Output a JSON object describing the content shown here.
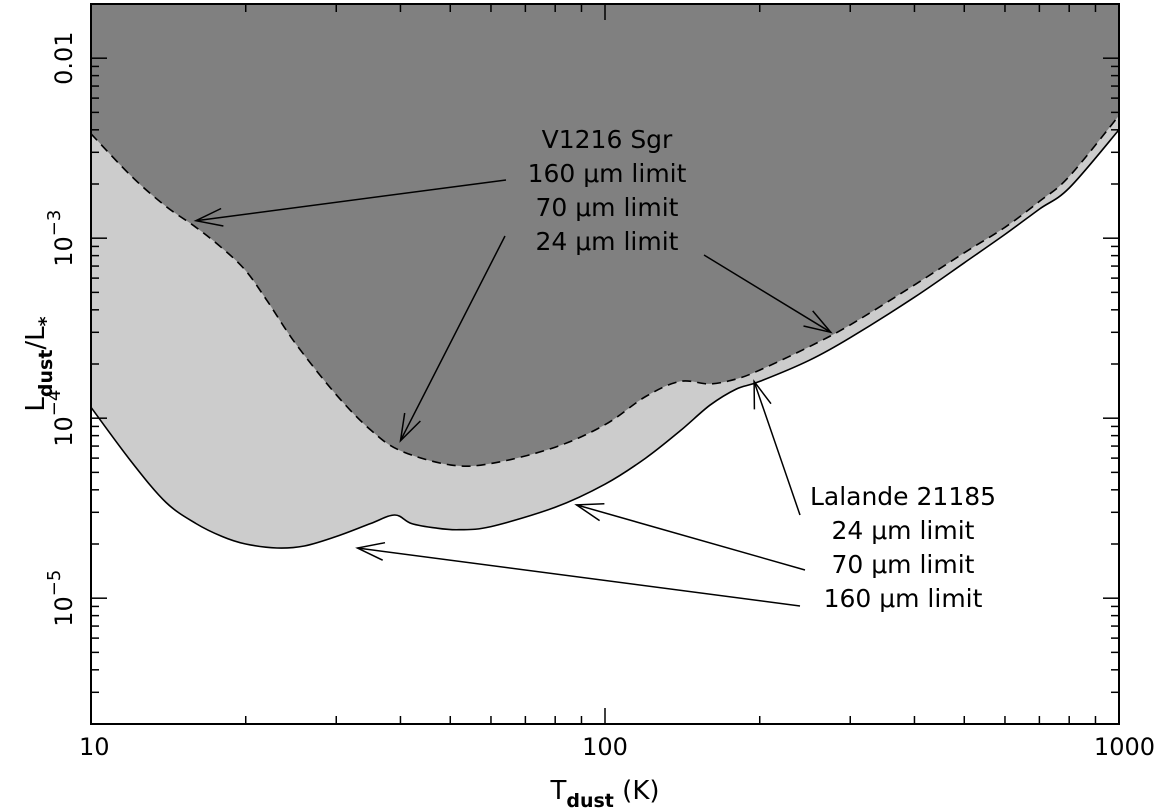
{
  "chart_data": {
    "type": "area",
    "x_scale": "log",
    "y_scale": "log",
    "xlim": [
      10,
      1000
    ],
    "ylim": [
      2e-06,
      0.02
    ],
    "xlabel": {
      "main": "T",
      "sub": "dust",
      "unit": " (K)"
    },
    "ylabel": {
      "main": "L",
      "sub1": "dust",
      "mid": "/L",
      "sub2": "*"
    },
    "x_ticks": [
      {
        "value": 10,
        "label": "10"
      },
      {
        "value": 100,
        "label": "100"
      },
      {
        "value": 1000,
        "label": "1000"
      }
    ],
    "y_ticks": [
      {
        "value": 1e-05,
        "base": "10",
        "exp": "−5"
      },
      {
        "value": 0.0001,
        "base": "10",
        "exp": "−4"
      },
      {
        "value": 0.001,
        "base": "10",
        "exp": "−3"
      },
      {
        "value": 0.01,
        "label": "0.01"
      }
    ],
    "series": [
      {
        "name": "V1216 Sgr",
        "style": "dashed",
        "fill": "#808080",
        "points": [
          [
            10,
            0.0038
          ],
          [
            12,
            0.0022
          ],
          [
            14,
            0.0015
          ],
          [
            16,
            0.00115
          ],
          [
            18,
            0.00088
          ],
          [
            20,
            0.00066
          ],
          [
            22,
            0.00045
          ],
          [
            25,
            0.00026
          ],
          [
            30,
            0.000135
          ],
          [
            35,
            8.6e-05
          ],
          [
            40,
            6.6e-05
          ],
          [
            50,
            5.5e-05
          ],
          [
            60,
            5.6e-05
          ],
          [
            80,
            6.9e-05
          ],
          [
            100,
            9.2e-05
          ],
          [
            120,
            0.000132
          ],
          [
            140,
            0.00016
          ],
          [
            160,
            0.000155
          ],
          [
            180,
            0.000165
          ],
          [
            200,
            0.000185
          ],
          [
            250,
            0.00025
          ],
          [
            300,
            0.00033
          ],
          [
            400,
            0.00055
          ],
          [
            500,
            0.00083
          ],
          [
            600,
            0.00115
          ],
          [
            700,
            0.0016
          ],
          [
            800,
            0.0022
          ],
          [
            1000,
            0.0048
          ]
        ]
      },
      {
        "name": "Lalande 21185",
        "style": "solid",
        "fill": "#cccccc",
        "points": [
          [
            10,
            0.000115
          ],
          [
            12,
            5.7e-05
          ],
          [
            14,
            3.4e-05
          ],
          [
            16,
            2.6e-05
          ],
          [
            18,
            2.2e-05
          ],
          [
            20,
            2e-05
          ],
          [
            23,
            1.9e-05
          ],
          [
            26,
            1.95e-05
          ],
          [
            30,
            2.2e-05
          ],
          [
            35,
            2.6e-05
          ],
          [
            39,
            2.9e-05
          ],
          [
            42,
            2.6e-05
          ],
          [
            47,
            2.45e-05
          ],
          [
            52,
            2.4e-05
          ],
          [
            60,
            2.5e-05
          ],
          [
            80,
            3.2e-05
          ],
          [
            100,
            4.3e-05
          ],
          [
            120,
            6e-05
          ],
          [
            140,
            8.5e-05
          ],
          [
            160,
            0.000118
          ],
          [
            180,
            0.000145
          ],
          [
            200,
            0.00016
          ],
          [
            250,
            0.00021
          ],
          [
            300,
            0.00028
          ],
          [
            400,
            0.00047
          ],
          [
            500,
            0.00073
          ],
          [
            600,
            0.00105
          ],
          [
            700,
            0.00145
          ],
          [
            800,
            0.0019
          ],
          [
            1000,
            0.004
          ]
        ]
      }
    ],
    "annotations": [
      {
        "id": "v1216",
        "lines": [
          "V1216 Sgr",
          "160 μm limit",
          "70 μm limit",
          "24 μm limit"
        ],
        "arrows": [
          {
            "from_line": 1,
            "to": [
              16,
              0.00125
            ]
          },
          {
            "from_line": 2,
            "to": [
              40,
              7.5e-05
            ]
          },
          {
            "from_line": 3,
            "to": [
              275,
              0.0003
            ]
          }
        ]
      },
      {
        "id": "lalande",
        "lines": [
          "Lalande 21185",
          "24 μm limit",
          "70 μm limit",
          "160 μm limit"
        ],
        "arrows": [
          {
            "from_line": 1,
            "to": [
              195,
              0.00016
            ]
          },
          {
            "from_line": 2,
            "to": [
              88,
              3.3e-05
            ]
          },
          {
            "from_line": 3,
            "to": [
              33,
              1.9e-05
            ]
          }
        ]
      }
    ]
  }
}
